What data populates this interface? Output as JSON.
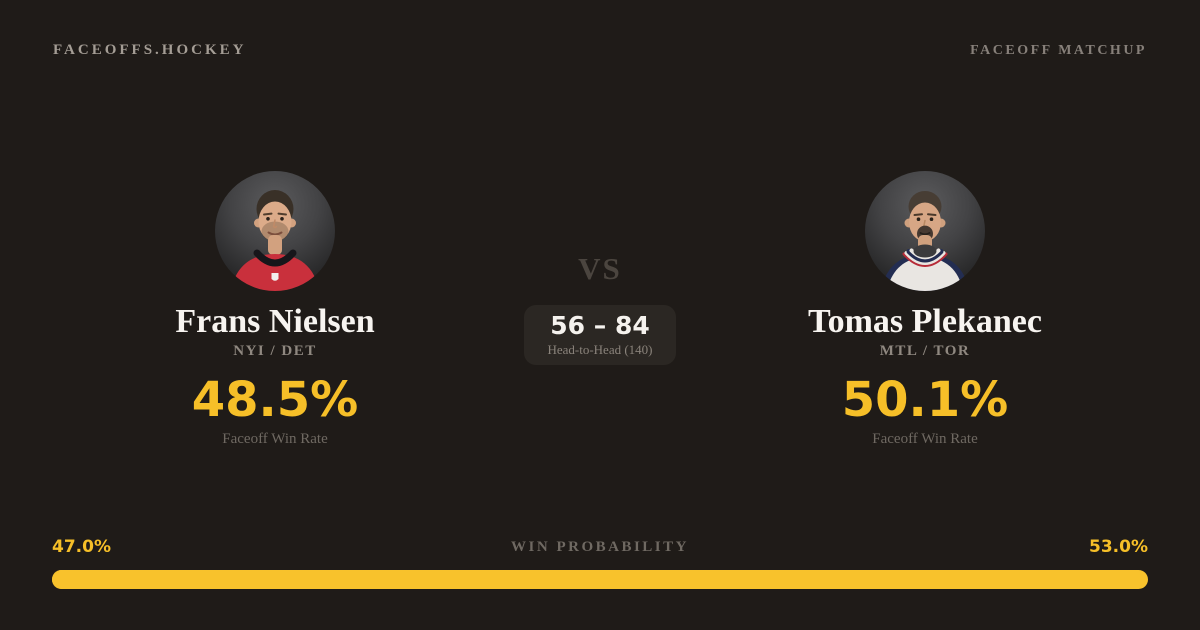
{
  "header": {
    "brand": "FACEOFFS.HOCKEY",
    "page_label": "FACEOFF MATCHUP"
  },
  "player_left": {
    "name": "Frans Nielsen",
    "teams": "NYI / DET",
    "win_rate": "48.5%",
    "win_rate_label": "Faceoff Win Rate",
    "jersey_color": "#C9303C",
    "collar_color": "#17161A"
  },
  "player_right": {
    "name": "Tomas Plekanec",
    "teams": "MTL / TOR",
    "win_rate": "50.1%",
    "win_rate_label": "Faceoff Win Rate",
    "jersey_color": "#E9E6E2",
    "collar_navy": "#232D52",
    "collar_red": "#B62B38"
  },
  "matchup": {
    "vs_label": "VS",
    "head_to_head_score": "56 – 84",
    "head_to_head_label": "Head-to-Head (140)"
  },
  "win_probability": {
    "title": "WIN PROBABILITY",
    "left_label": "47.0%",
    "right_label": "53.0%",
    "left_value": 47.0,
    "right_value": 53.0,
    "bar_color": "#F8C22C"
  },
  "colors": {
    "background": "#1F1B18",
    "accent_gold": "#F6BF28",
    "text_primary": "#F7F4F0",
    "text_muted": "#8F8880",
    "box_background": "#2B2723"
  }
}
